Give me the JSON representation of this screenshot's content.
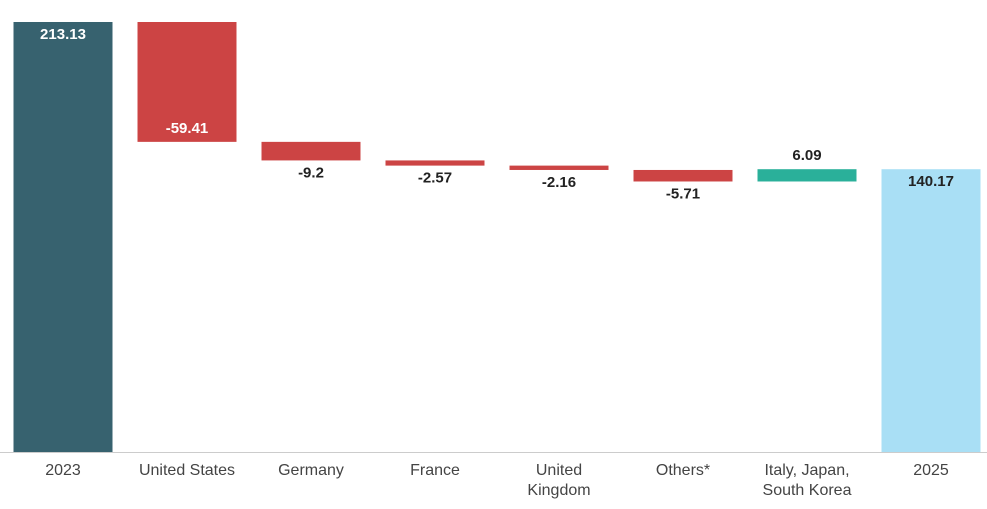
{
  "chart_data": {
    "type": "waterfall",
    "categories": [
      "2023",
      "United States",
      "Germany",
      "France",
      "United Kingdom",
      "Others*",
      "Italy, Japan, South Korea",
      "2025"
    ],
    "values": [
      213.13,
      -59.41,
      -9.2,
      -2.57,
      -2.16,
      -5.71,
      6.09,
      140.17
    ],
    "measures": [
      "absolute",
      "relative",
      "relative",
      "relative",
      "relative",
      "relative",
      "relative",
      "total"
    ],
    "colors": {
      "absolute": "#37626f",
      "decrease": "#cc4444",
      "increase": "#2ab09a",
      "total": "#a9dff5"
    },
    "ylim": [
      0,
      213.13
    ]
  }
}
